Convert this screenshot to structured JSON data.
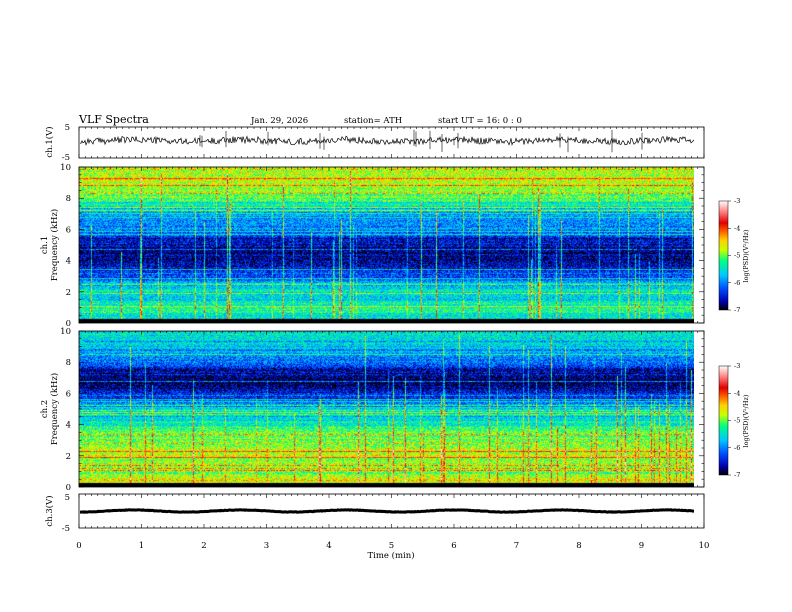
{
  "header": {
    "title": "VLF  Spectra",
    "date": "Jan. 29, 2026",
    "station": "station= ATH",
    "start": "start  UT  =    16: 0  : 0"
  },
  "chart_data": {
    "type": "heatmap",
    "title": "VLF  Spectra",
    "xlabel": "Time  (min)",
    "x_ticks": [
      "0",
      "1",
      "2",
      "3",
      "4",
      "5",
      "6",
      "7",
      "8",
      "9",
      "10"
    ],
    "xlim": [
      0,
      10
    ],
    "data_end_min": 9.85,
    "panels": [
      {
        "id": "ch1-waveform",
        "type": "line",
        "ylabel": "ch.1(V)",
        "y_ticks": [
          "5",
          "-5"
        ],
        "ylim": [
          -5,
          5
        ],
        "baseline": 0.6
      },
      {
        "id": "ch1-spectrogram",
        "type": "heatmap",
        "ylabel_channel": "ch.1",
        "ylabel": "Frequency  (kHz)",
        "y_ticks": [
          "0",
          "2",
          "4",
          "6",
          "8",
          "10"
        ],
        "ylim": [
          0,
          10
        ],
        "profile_khz": [
          0,
          0.5,
          1,
          1.5,
          2,
          2.5,
          3,
          3.5,
          4,
          4.5,
          5,
          5.5,
          6,
          6.5,
          7,
          7.5,
          8,
          8.5,
          9,
          9.5,
          10
        ],
        "profile_level": [
          -5.6,
          -5.4,
          -5.3,
          -5.6,
          -5.5,
          -5.8,
          -6.3,
          -6.5,
          -6.6,
          -6.7,
          -6.6,
          -6.3,
          -6.1,
          -6.0,
          -5.9,
          -5.5,
          -5.1,
          -4.9,
          -4.8,
          -4.8,
          -4.8
        ],
        "colorbar": {
          "label": "log(PSD)(V²/Hz)",
          "ticks": [
            "-3",
            "-4",
            "-5",
            "-6",
            "-7"
          ],
          "range": [
            -7,
            -3
          ]
        }
      },
      {
        "id": "ch2-spectrogram",
        "type": "heatmap",
        "ylabel_channel": "ch.2",
        "ylabel": "Frequency  (kHz)",
        "y_ticks": [
          "0",
          "2",
          "4",
          "6",
          "8",
          "10"
        ],
        "ylim": [
          0,
          10
        ],
        "profile_khz": [
          0,
          0.5,
          1,
          1.5,
          2,
          2.5,
          3,
          3.5,
          4,
          4.5,
          5,
          5.5,
          6,
          6.5,
          7,
          7.5,
          8,
          8.5,
          9,
          9.5,
          10
        ],
        "profile_level": [
          -4.6,
          -4.7,
          -4.8,
          -4.9,
          -4.7,
          -4.9,
          -5.1,
          -5.0,
          -5.4,
          -5.6,
          -5.7,
          -6.1,
          -6.4,
          -6.8,
          -6.9,
          -6.6,
          -6.1,
          -5.9,
          -5.7,
          -5.6,
          -5.5
        ],
        "colorbar": {
          "label": "log(PSD)(V²/Hz)",
          "ticks": [
            "-3",
            "-4",
            "-5",
            "-6",
            "-7"
          ],
          "range": [
            -7,
            -3
          ]
        }
      },
      {
        "id": "ch3-waveform",
        "type": "line",
        "ylabel": "ch.3(V)",
        "y_ticks": [
          "5",
          "-5"
        ],
        "ylim": [
          -5,
          5
        ],
        "baseline": 0
      }
    ],
    "colors": {
      "scale": [
        "#000000",
        "#0000b0",
        "#0050ff",
        "#00c8ff",
        "#00ff80",
        "#c8ff00",
        "#ffd000",
        "#ff6000",
        "#e00000",
        "#ff8080",
        "#ffe0e0",
        "#ffffff"
      ]
    }
  }
}
